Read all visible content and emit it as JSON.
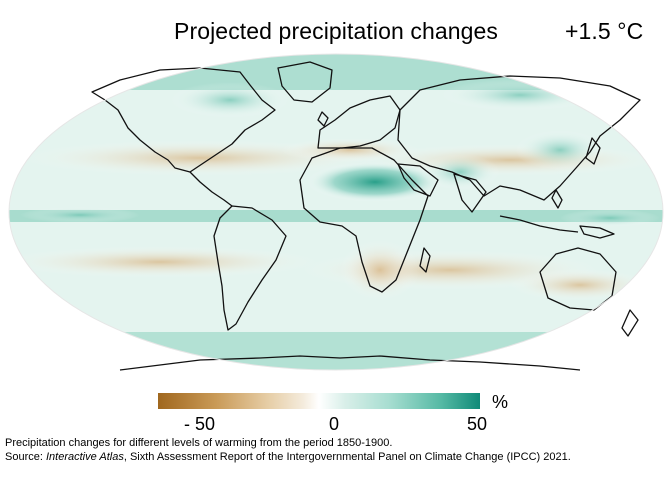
{
  "title": "Projected precipitation changes",
  "warming_level": "+1.5 °C",
  "legend": {
    "unit": "%",
    "ticks": [
      "- 50",
      "0",
      "50"
    ],
    "min": -50,
    "max": 50,
    "colors": {
      "dry": "#a0671e",
      "neutral": "#ffffff",
      "wet": "#0f8a78"
    }
  },
  "caption": {
    "line1": "Precipitation changes for different levels of warming from the period 1850-1900.",
    "source_prefix": "Source: ",
    "source_italic": "Interactive Atlas",
    "source_rest": ", Sixth Assessment Report of the Intergovernmental Panel on Climate Change (IPCC) 2021."
  }
}
